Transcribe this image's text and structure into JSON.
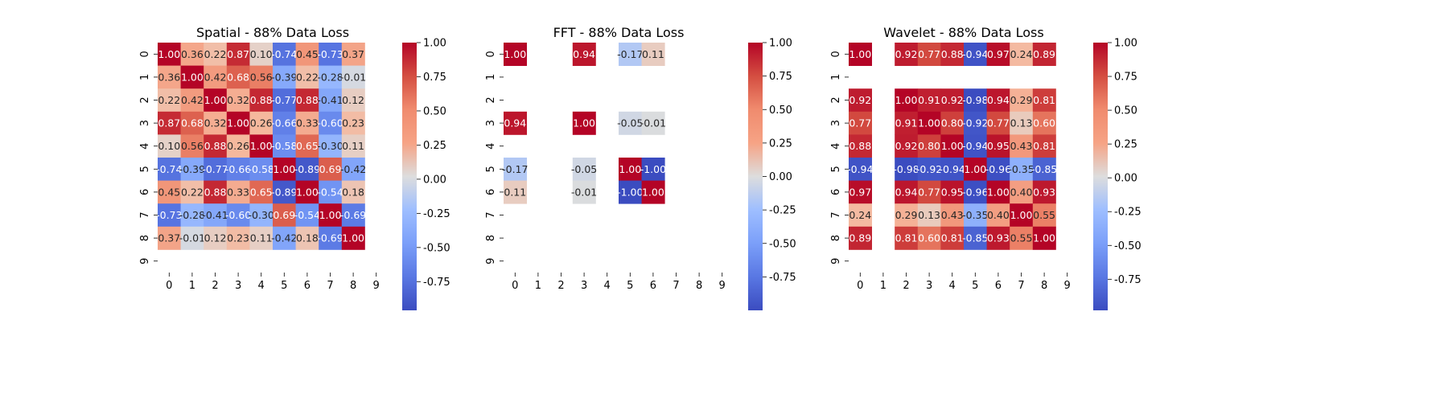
{
  "chart_data": [
    {
      "type": "heatmap",
      "title": "Spatial - 88% Data Loss",
      "x_ticks": [
        "0",
        "1",
        "2",
        "3",
        "4",
        "5",
        "6",
        "7",
        "8",
        "9"
      ],
      "y_ticks": [
        "0",
        "1",
        "2",
        "3",
        "4",
        "5",
        "6",
        "7",
        "8",
        "9"
      ],
      "colorbar_ticks": [
        "1.00",
        "0.75",
        "0.50",
        "0.25",
        "0.00",
        "-0.25",
        "-0.50",
        "-0.75"
      ],
      "colorbar_range": [
        -0.96,
        1.0
      ],
      "colormap": "coolwarm",
      "values": [
        [
          1.0,
          0.36,
          0.22,
          0.87,
          0.1,
          -0.74,
          0.45,
          -0.73,
          0.37,
          null
        ],
        [
          0.36,
          1.0,
          0.42,
          0.68,
          0.56,
          -0.39,
          0.22,
          -0.28,
          -0.01,
          null
        ],
        [
          0.22,
          0.42,
          1.0,
          0.32,
          0.88,
          -0.77,
          0.88,
          -0.41,
          0.12,
          null
        ],
        [
          0.87,
          0.68,
          0.32,
          1.0,
          0.26,
          -0.66,
          0.33,
          -0.6,
          0.23,
          null
        ],
        [
          0.1,
          0.56,
          0.88,
          0.26,
          1.0,
          -0.58,
          0.65,
          -0.3,
          0.11,
          null
        ],
        [
          -0.74,
          -0.39,
          -0.77,
          -0.66,
          -0.58,
          1.0,
          -0.89,
          0.69,
          -0.42,
          null
        ],
        [
          0.45,
          0.22,
          0.88,
          0.33,
          0.65,
          -0.89,
          1.0,
          -0.54,
          0.18,
          null
        ],
        [
          -0.73,
          -0.28,
          -0.41,
          -0.6,
          -0.3,
          0.69,
          -0.54,
          1.0,
          -0.69,
          null
        ],
        [
          0.37,
          -0.01,
          0.12,
          0.23,
          0.11,
          -0.42,
          0.18,
          -0.69,
          1.0,
          null
        ],
        [
          null,
          null,
          null,
          null,
          null,
          null,
          null,
          null,
          null,
          null
        ]
      ],
      "labels": [
        [
          "1.00",
          "0.36",
          "0.22",
          "0.87",
          "0.10",
          "-0.74",
          "0.45",
          "-0.73",
          "0.37",
          ""
        ],
        [
          "0.36",
          "1.00",
          "0.42",
          "0.68",
          "0.56",
          "-0.39",
          "0.22",
          "-0.28",
          "-0.01",
          ""
        ],
        [
          "0.22",
          "0.42",
          "1.00",
          "0.32",
          "0.88",
          "-0.77",
          "0.88",
          "-0.41",
          "0.12",
          ""
        ],
        [
          "0.87",
          "0.68",
          "0.32",
          "1.00",
          "0.26",
          "-0.66",
          "0.33",
          "-0.60",
          "0.23",
          ""
        ],
        [
          "0.10",
          "0.56",
          "0.88",
          "0.26",
          "1.00",
          "-0.58",
          "0.65",
          "-0.30",
          "0.11",
          ""
        ],
        [
          "-0.74",
          "-0.39",
          "-0.77",
          "-0.66",
          "-0.58",
          "1.00",
          "-0.89",
          "0.69",
          "-0.42",
          ""
        ],
        [
          "0.45",
          "0.22",
          "0.88",
          "0.33",
          "0.65",
          "-0.89",
          "1.00",
          "-0.54",
          "0.18",
          ""
        ],
        [
          "-0.73",
          "-0.28",
          "-0.41",
          "-0.60",
          "-0.30",
          "0.69",
          "-0.54",
          "1.00",
          "-0.69",
          ""
        ],
        [
          "0.37",
          "-0.01",
          "0.12",
          "0.23",
          "0.11",
          "-0.42",
          "0.18",
          "-0.69",
          "1.00",
          ""
        ],
        [
          "",
          "",
          "",
          "",
          "",
          "",
          "",
          "",
          "",
          ""
        ]
      ]
    },
    {
      "type": "heatmap",
      "title": "FFT - 88% Data Loss",
      "x_ticks": [
        "0",
        "1",
        "2",
        "3",
        "4",
        "5",
        "6",
        "7",
        "8",
        "9"
      ],
      "y_ticks": [
        "0",
        "1",
        "2",
        "3",
        "4",
        "5",
        "6",
        "7",
        "8",
        "9"
      ],
      "colorbar_ticks": [
        "1.00",
        "0.75",
        "0.50",
        "0.25",
        "0.00",
        "-0.25",
        "-0.50",
        "-0.75"
      ],
      "colorbar_range": [
        -1.0,
        1.0
      ],
      "colormap": "coolwarm",
      "values": [
        [
          1.0,
          null,
          null,
          0.94,
          null,
          -0.17,
          0.11,
          null,
          null,
          null
        ],
        [
          null,
          null,
          null,
          null,
          null,
          null,
          null,
          null,
          null,
          null
        ],
        [
          null,
          null,
          null,
          null,
          null,
          null,
          null,
          null,
          null,
          null
        ],
        [
          0.94,
          null,
          null,
          1.0,
          null,
          -0.05,
          -0.01,
          null,
          null,
          null
        ],
        [
          null,
          null,
          null,
          null,
          null,
          null,
          null,
          null,
          null,
          null
        ],
        [
          -0.17,
          null,
          null,
          -0.05,
          null,
          1.0,
          -1.0,
          null,
          null,
          null
        ],
        [
          0.11,
          null,
          null,
          -0.01,
          null,
          -1.0,
          1.0,
          null,
          null,
          null
        ],
        [
          null,
          null,
          null,
          null,
          null,
          null,
          null,
          null,
          null,
          null
        ],
        [
          null,
          null,
          null,
          null,
          null,
          null,
          null,
          null,
          null,
          null
        ],
        [
          null,
          null,
          null,
          null,
          null,
          null,
          null,
          null,
          null,
          null
        ]
      ],
      "labels": [
        [
          "1.00",
          "",
          "",
          "0.94",
          "",
          "-0.17",
          "0.11",
          "",
          "",
          ""
        ],
        [
          "",
          "",
          "",
          "",
          "",
          "",
          "",
          "",
          "",
          ""
        ],
        [
          "",
          "",
          "",
          "",
          "",
          "",
          "",
          "",
          "",
          ""
        ],
        [
          "0.94",
          "",
          "",
          "1.00",
          "",
          "-0.05",
          "-0.01",
          "",
          "",
          ""
        ],
        [
          "",
          "",
          "",
          "",
          "",
          "",
          "",
          "",
          "",
          ""
        ],
        [
          "-0.17",
          "",
          "",
          "-0.05",
          "",
          "1.00",
          "-1.00",
          "",
          "",
          ""
        ],
        [
          "0.11",
          "",
          "",
          "-0.01",
          "",
          "-1.00",
          "1.00",
          "",
          "",
          ""
        ],
        [
          "",
          "",
          "",
          "",
          "",
          "",
          "",
          "",
          "",
          ""
        ],
        [
          "",
          "",
          "",
          "",
          "",
          "",
          "",
          "",
          "",
          ""
        ],
        [
          "",
          "",
          "",
          "",
          "",
          "",
          "",
          "",
          "",
          ""
        ]
      ]
    },
    {
      "type": "heatmap",
      "title": "Wavelet - 88% Data Loss",
      "x_ticks": [
        "0",
        "1",
        "2",
        "3",
        "4",
        "5",
        "6",
        "7",
        "8",
        "9"
      ],
      "y_ticks": [
        "0",
        "1",
        "2",
        "3",
        "4",
        "5",
        "6",
        "7",
        "8",
        "9"
      ],
      "colorbar_ticks": [
        "1.00",
        "0.75",
        "0.50",
        "0.25",
        "0.00",
        "-0.25",
        "-0.50",
        "-0.75"
      ],
      "colorbar_range": [
        -0.98,
        1.0
      ],
      "colormap": "coolwarm",
      "values": [
        [
          1.0,
          null,
          0.92,
          0.77,
          0.88,
          -0.94,
          0.97,
          0.24,
          0.89,
          null
        ],
        [
          null,
          null,
          null,
          null,
          null,
          null,
          null,
          null,
          null,
          null
        ],
        [
          0.92,
          null,
          1.0,
          0.91,
          0.92,
          -0.98,
          0.94,
          0.29,
          0.81,
          null
        ],
        [
          0.77,
          null,
          0.91,
          1.0,
          0.8,
          -0.92,
          0.77,
          0.13,
          0.6,
          null
        ],
        [
          0.88,
          null,
          0.92,
          0.8,
          1.0,
          -0.94,
          0.95,
          0.43,
          0.81,
          null
        ],
        [
          -0.94,
          null,
          -0.98,
          -0.92,
          -0.94,
          1.0,
          -0.96,
          -0.35,
          -0.85,
          null
        ],
        [
          0.97,
          null,
          0.94,
          0.77,
          0.95,
          -0.96,
          1.0,
          0.4,
          0.93,
          null
        ],
        [
          0.24,
          null,
          0.29,
          0.13,
          0.43,
          -0.35,
          0.4,
          1.0,
          0.55,
          null
        ],
        [
          0.89,
          null,
          0.81,
          0.6,
          0.81,
          -0.85,
          0.93,
          0.55,
          1.0,
          null
        ],
        [
          null,
          null,
          null,
          null,
          null,
          null,
          null,
          null,
          null,
          null
        ]
      ],
      "labels": [
        [
          "1.00",
          "",
          "0.92",
          "0.77",
          "0.88",
          "-0.94",
          "0.97",
          "0.24",
          "0.89",
          ""
        ],
        [
          "",
          "",
          "",
          "",
          "",
          "",
          "",
          "",
          "",
          ""
        ],
        [
          "0.92",
          "",
          "1.00",
          "0.91",
          "0.92",
          "-0.98",
          "0.94",
          "0.29",
          "0.81",
          ""
        ],
        [
          "0.77",
          "",
          "0.91",
          "1.00",
          "0.80",
          "-0.92",
          "0.77",
          "0.13",
          "0.60",
          ""
        ],
        [
          "0.88",
          "",
          "0.92",
          "0.80",
          "1.00",
          "-0.94",
          "0.95",
          "0.43",
          "0.81",
          ""
        ],
        [
          "-0.94",
          "",
          "-0.98",
          "-0.92",
          "-0.94",
          "1.00",
          "-0.96",
          "-0.35",
          "-0.85",
          ""
        ],
        [
          "0.97",
          "",
          "0.94",
          "0.77",
          "0.95",
          "-0.96",
          "1.00",
          "0.40",
          "0.93",
          ""
        ],
        [
          "0.24",
          "",
          "0.29",
          "0.13",
          "0.43",
          "-0.35",
          "0.40",
          "1.00",
          "0.55",
          ""
        ],
        [
          "0.89",
          "",
          "0.81",
          "0.60",
          "0.81",
          "-0.85",
          "0.93",
          "0.55",
          "1.00",
          ""
        ],
        [
          "",
          "",
          "",
          "",
          "",
          "",
          "",
          "",
          "",
          ""
        ]
      ]
    }
  ]
}
